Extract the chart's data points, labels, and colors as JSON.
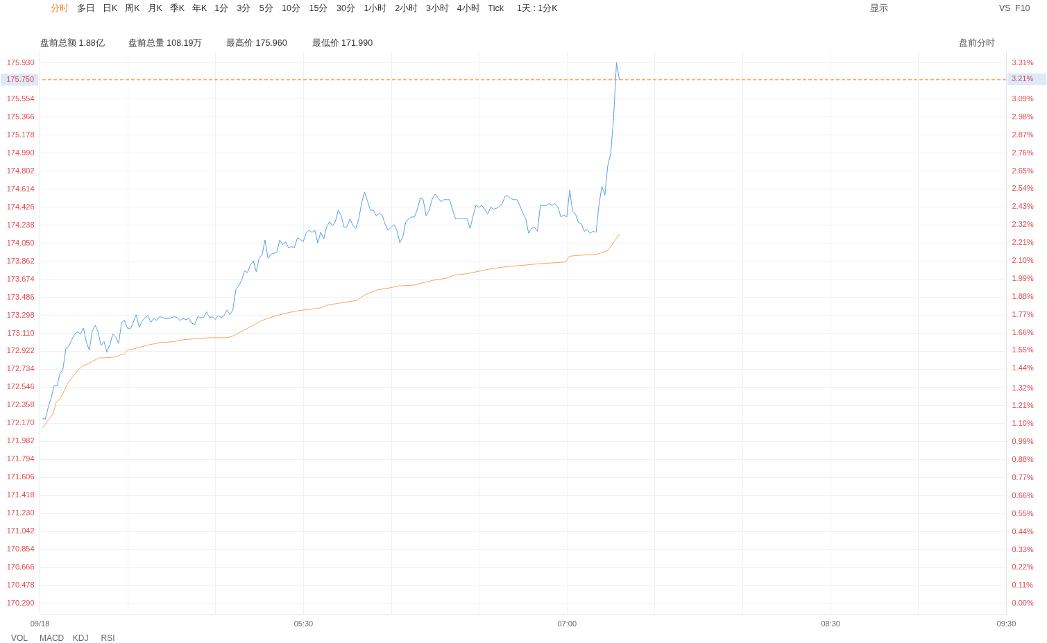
{
  "chart_data": {
    "type": "line",
    "xlim": [
      4,
      9.5
    ],
    "xticks": [
      {
        "value": 4,
        "label": "09/18"
      },
      {
        "value": 4.5,
        "label": null
      },
      {
        "value": 5,
        "label": null
      },
      {
        "value": 5.5,
        "label": "05:30"
      },
      {
        "value": 6,
        "label": null
      },
      {
        "value": 6.5,
        "label": null
      },
      {
        "value": 7,
        "label": "07:00"
      },
      {
        "value": 7.5,
        "label": null
      },
      {
        "value": 8,
        "label": null
      },
      {
        "value": 8.5,
        "label": "08:30"
      },
      {
        "value": 9,
        "label": null
      },
      {
        "value": 9.5,
        "label": "09:30"
      }
    ],
    "ylim": [
      170.18,
      176.04
    ],
    "yticks": [
      {
        "value": 170.29,
        "label": "170.290"
      },
      170.478,
      170.666,
      170.854,
      171.042,
      {
        "value": 171.23,
        "label": "171.230"
      },
      171.418,
      171.606,
      171.794,
      171.982,
      {
        "value": 172.17,
        "label": "172.170"
      },
      172.358,
      172.546,
      172.734,
      172.922,
      {
        "value": 173.11,
        "label": "173.110"
      },
      173.298,
      173.486,
      173.674,
      173.862,
      {
        "value": 174.05,
        "label": "174.050"
      },
      174.238,
      174.426,
      174.614,
      174.802,
      {
        "value": 174.99,
        "label": "174.990"
      },
      175.178,
      175.366,
      175.554,
      {
        "value": 175.93,
        "label": "175.930"
      }
    ],
    "y2lim": [
      -0.065,
      3.377
    ],
    "y2ticks": [
      {
        "value": 0,
        "label": "0.00%"
      },
      {
        "value": 0.11,
        "label": "0.11%"
      },
      {
        "value": 0.22,
        "label": "0.22%"
      },
      {
        "value": 0.33,
        "label": "0.33%"
      },
      {
        "value": 0.44,
        "label": "0.44%"
      },
      {
        "value": 0.55,
        "label": "0.55%"
      },
      {
        "value": 0.66,
        "label": "0.66%"
      },
      {
        "value": 0.77,
        "label": "0.77%"
      },
      {
        "value": 0.88,
        "label": "0.88%"
      },
      {
        "value": 0.99,
        "label": "0.99%"
      },
      {
        "value": 1.1,
        "label": "1.10%"
      },
      {
        "value": 1.21,
        "label": "1.21%"
      },
      {
        "value": 1.32,
        "label": "1.32%"
      },
      {
        "value": 1.44,
        "label": "1.44%"
      },
      {
        "value": 1.55,
        "label": "1.55%"
      },
      {
        "value": 1.66,
        "label": "1.66%"
      },
      {
        "value": 1.77,
        "label": "1.77%"
      },
      {
        "value": 1.88,
        "label": "1.88%"
      },
      {
        "value": 1.99,
        "label": "1.99%"
      },
      {
        "value": 2.1,
        "label": "2.10%"
      },
      {
        "value": 2.21,
        "label": "2.21%"
      },
      {
        "value": 2.32,
        "label": "2.32%"
      },
      {
        "value": 2.43,
        "label": "2.43%"
      },
      {
        "value": 2.54,
        "label": "2.54%"
      },
      {
        "value": 2.65,
        "label": "2.65%"
      },
      {
        "value": 2.76,
        "label": "2.76%"
      },
      {
        "value": 2.87,
        "label": "2.87%"
      },
      {
        "value": 2.98,
        "label": "2.98%"
      },
      {
        "value": 3.09,
        "label": "3.09%"
      },
      {
        "value": 3.31,
        "label": "3.31%"
      }
    ],
    "grid": true,
    "series": [
      {
        "color": "#5d9cec",
        "x": [
          4.017,
          4.033,
          4.05,
          4.067,
          4.083,
          4.1,
          4.117,
          4.133,
          4.15,
          4.167,
          4.183,
          4.2,
          4.217,
          4.233,
          4.25,
          4.267,
          4.283,
          4.3,
          4.317,
          4.333,
          4.35,
          4.367,
          4.383,
          4.4,
          4.417,
          4.433,
          4.45,
          4.467,
          4.483,
          4.5,
          4.517,
          4.533,
          4.55,
          4.567,
          4.583,
          4.6,
          4.617,
          4.633,
          4.65,
          4.667,
          4.683,
          4.7,
          4.717,
          4.733,
          4.75,
          4.767,
          4.783,
          4.8,
          4.817,
          4.833,
          4.85,
          4.867,
          4.883,
          4.9,
          4.917,
          4.933,
          4.95,
          4.967,
          4.983,
          5,
          5.017,
          5.033,
          5.05,
          5.067,
          5.083,
          5.1,
          5.117,
          5.133,
          5.15,
          5.167,
          5.183,
          5.2,
          5.217,
          5.233,
          5.25,
          5.267,
          5.283,
          5.3,
          5.317,
          5.333,
          5.35,
          5.367,
          5.383,
          5.4,
          5.417,
          5.433,
          5.45,
          5.467,
          5.483,
          5.5,
          5.517,
          5.533,
          5.55,
          5.567,
          5.583,
          5.6,
          5.617,
          5.633,
          5.65,
          5.667,
          5.683,
          5.7,
          5.717,
          5.733,
          5.75,
          5.767,
          5.783,
          5.8,
          5.817,
          5.833,
          5.85,
          5.867,
          5.883,
          5.9,
          5.917,
          5.933,
          5.95,
          5.967,
          5.983,
          6,
          6.017,
          6.033,
          6.05,
          6.067,
          6.083,
          6.1,
          6.117,
          6.133,
          6.15,
          6.167,
          6.183,
          6.2,
          6.217,
          6.233,
          6.25,
          6.267,
          6.283,
          6.3,
          6.317,
          6.333,
          6.35,
          6.367,
          6.383,
          6.4,
          6.417,
          6.433,
          6.45,
          6.467,
          6.483,
          6.5,
          6.517,
          6.533,
          6.55,
          6.567,
          6.583,
          6.6,
          6.617,
          6.633,
          6.65,
          6.667,
          6.683,
          6.7,
          6.717,
          6.733,
          6.75,
          6.767,
          6.783,
          6.8,
          6.817,
          6.833,
          6.85,
          6.867,
          6.883,
          6.9,
          6.917,
          6.933,
          6.95,
          6.967,
          6.983,
          7,
          7.017,
          7.033,
          7.05,
          7.067,
          7.083,
          7.1,
          7.117,
          7.133,
          7.15,
          7.167,
          7.183,
          7.2,
          7.217,
          7.233,
          7.25,
          7.267,
          7.283,
          7.3
        ],
        "values": [
          172.22,
          172.21,
          172.34,
          172.44,
          172.56,
          172.56,
          172.69,
          172.73,
          172.95,
          172.97,
          173.04,
          173.1,
          173.12,
          173.1,
          173.16,
          173.01,
          172.93,
          173.13,
          173.19,
          173.12,
          172.98,
          173.02,
          172.91,
          172.99,
          173.1,
          173.07,
          173.0,
          173.22,
          173.24,
          173.16,
          173.15,
          173.22,
          173.3,
          173.17,
          173.23,
          173.27,
          173.29,
          173.22,
          173.26,
          173.24,
          173.28,
          173.27,
          173.26,
          173.26,
          173.27,
          173.28,
          173.27,
          173.24,
          173.26,
          173.25,
          173.26,
          173.21,
          173.2,
          173.28,
          173.27,
          173.27,
          173.33,
          173.27,
          173.28,
          173.25,
          173.29,
          173.27,
          173.29,
          173.35,
          173.3,
          173.35,
          173.56,
          173.6,
          173.66,
          173.76,
          173.74,
          173.82,
          173.86,
          173.75,
          173.89,
          173.93,
          174.08,
          173.89,
          173.93,
          173.94,
          173.95,
          174.08,
          174.03,
          174.06,
          174.0,
          174.01,
          174.0,
          174.1,
          174.09,
          174.06,
          174.15,
          174.18,
          174.16,
          174.18,
          174.05,
          174.16,
          174.09,
          174.21,
          174.27,
          174.23,
          174.27,
          174.39,
          174.33,
          174.21,
          174.22,
          174.3,
          174.23,
          174.2,
          174.3,
          174.47,
          174.58,
          174.48,
          174.39,
          174.39,
          174.33,
          174.36,
          174.34,
          174.24,
          174.18,
          174.21,
          174.24,
          174.18,
          174.05,
          174.11,
          174.26,
          174.3,
          174.32,
          174.32,
          174.4,
          174.52,
          174.5,
          174.33,
          174.39,
          174.5,
          174.56,
          174.52,
          174.48,
          174.5,
          174.5,
          174.5,
          174.4,
          174.3,
          174.3,
          174.3,
          174.3,
          174.3,
          174.2,
          174.33,
          174.44,
          174.42,
          174.44,
          174.4,
          174.35,
          174.42,
          174.4,
          174.41,
          174.43,
          174.46,
          174.54,
          174.54,
          174.51,
          174.5,
          174.5,
          174.44,
          174.36,
          174.3,
          174.15,
          174.2,
          174.21,
          174.17,
          174.44,
          174.44,
          174.44,
          174.46,
          174.44,
          174.46,
          174.42,
          174.32,
          174.34,
          174.32,
          174.6,
          174.38,
          174.35,
          174.26,
          174.25,
          174.17,
          174.19,
          174.15,
          174.17,
          174.16,
          174.44,
          174.64,
          174.55,
          174.85,
          174.98,
          175.36,
          175.93,
          175.75
        ]
      },
      {
        "color": "#f5a45b",
        "x": [
          4.017,
          4.037,
          4.057,
          4.077,
          4.095,
          4.115,
          4.133,
          4.162,
          4.188,
          4.213,
          4.247,
          4.28,
          4.307,
          4.34,
          4.372,
          4.432,
          4.458,
          4.483,
          4.5,
          4.53,
          4.608,
          4.688,
          4.767,
          4.82,
          4.898,
          4.965,
          5.057,
          5.09,
          5.135,
          5.175,
          5.215,
          5.255,
          5.293,
          5.347,
          5.412,
          5.465,
          5.505,
          5.557,
          5.597,
          5.637,
          5.702,
          5.807,
          5.853,
          5.925,
          5.992,
          6.04,
          6.137,
          6.175,
          6.242,
          6.313,
          6.353,
          6.438,
          6.518,
          6.57,
          6.65,
          6.715,
          6.833,
          6.913,
          6.992,
          7.015,
          7.072,
          7.17,
          7.235,
          7.262,
          7.3
        ],
        "values": [
          172.12,
          172.17,
          172.22,
          172.27,
          172.39,
          172.42,
          172.48,
          172.59,
          172.65,
          172.71,
          172.77,
          172.79,
          172.82,
          172.85,
          172.85,
          172.86,
          172.88,
          172.89,
          172.93,
          172.94,
          172.98,
          173.01,
          173.02,
          173.04,
          173.05,
          173.06,
          173.06,
          173.07,
          173.11,
          173.15,
          173.19,
          173.23,
          173.26,
          173.29,
          173.32,
          173.34,
          173.35,
          173.36,
          173.37,
          173.4,
          173.42,
          173.45,
          173.51,
          173.56,
          173.58,
          173.6,
          173.61,
          173.63,
          173.66,
          173.68,
          173.71,
          173.73,
          173.76,
          173.78,
          173.8,
          173.81,
          173.83,
          173.84,
          173.85,
          173.91,
          173.92,
          173.93,
          173.97,
          174.04,
          174.14
        ]
      }
    ],
    "ref_lines": [
      {
        "axis": "y",
        "value": 175.75,
        "label": "175.750",
        "color": "#f5a45b",
        "line_style": "dashed"
      },
      {
        "axis": "y2",
        "value": 3.21,
        "label": "3.21%",
        "color": "#f5a45b",
        "line_style": "dashed"
      }
    ],
    "annotations": [
      "分时",
      "多日",
      "日K",
      "周K",
      "月K",
      "季K",
      "年K",
      "1分",
      "3分",
      "5分",
      "10分",
      "15分",
      "30分",
      "1小时",
      "2小时",
      "3小时",
      "4小时",
      "Tick",
      "1天 : 1分K",
      "显示",
      "VS",
      "F10",
      "盘前总额 1.88亿",
      "盘前总量 108.19万",
      "最高价 175.960",
      "最低价 171.990",
      "盘前分时",
      "VOL",
      "MACD",
      "KDJ",
      "RSI"
    ]
  }
}
